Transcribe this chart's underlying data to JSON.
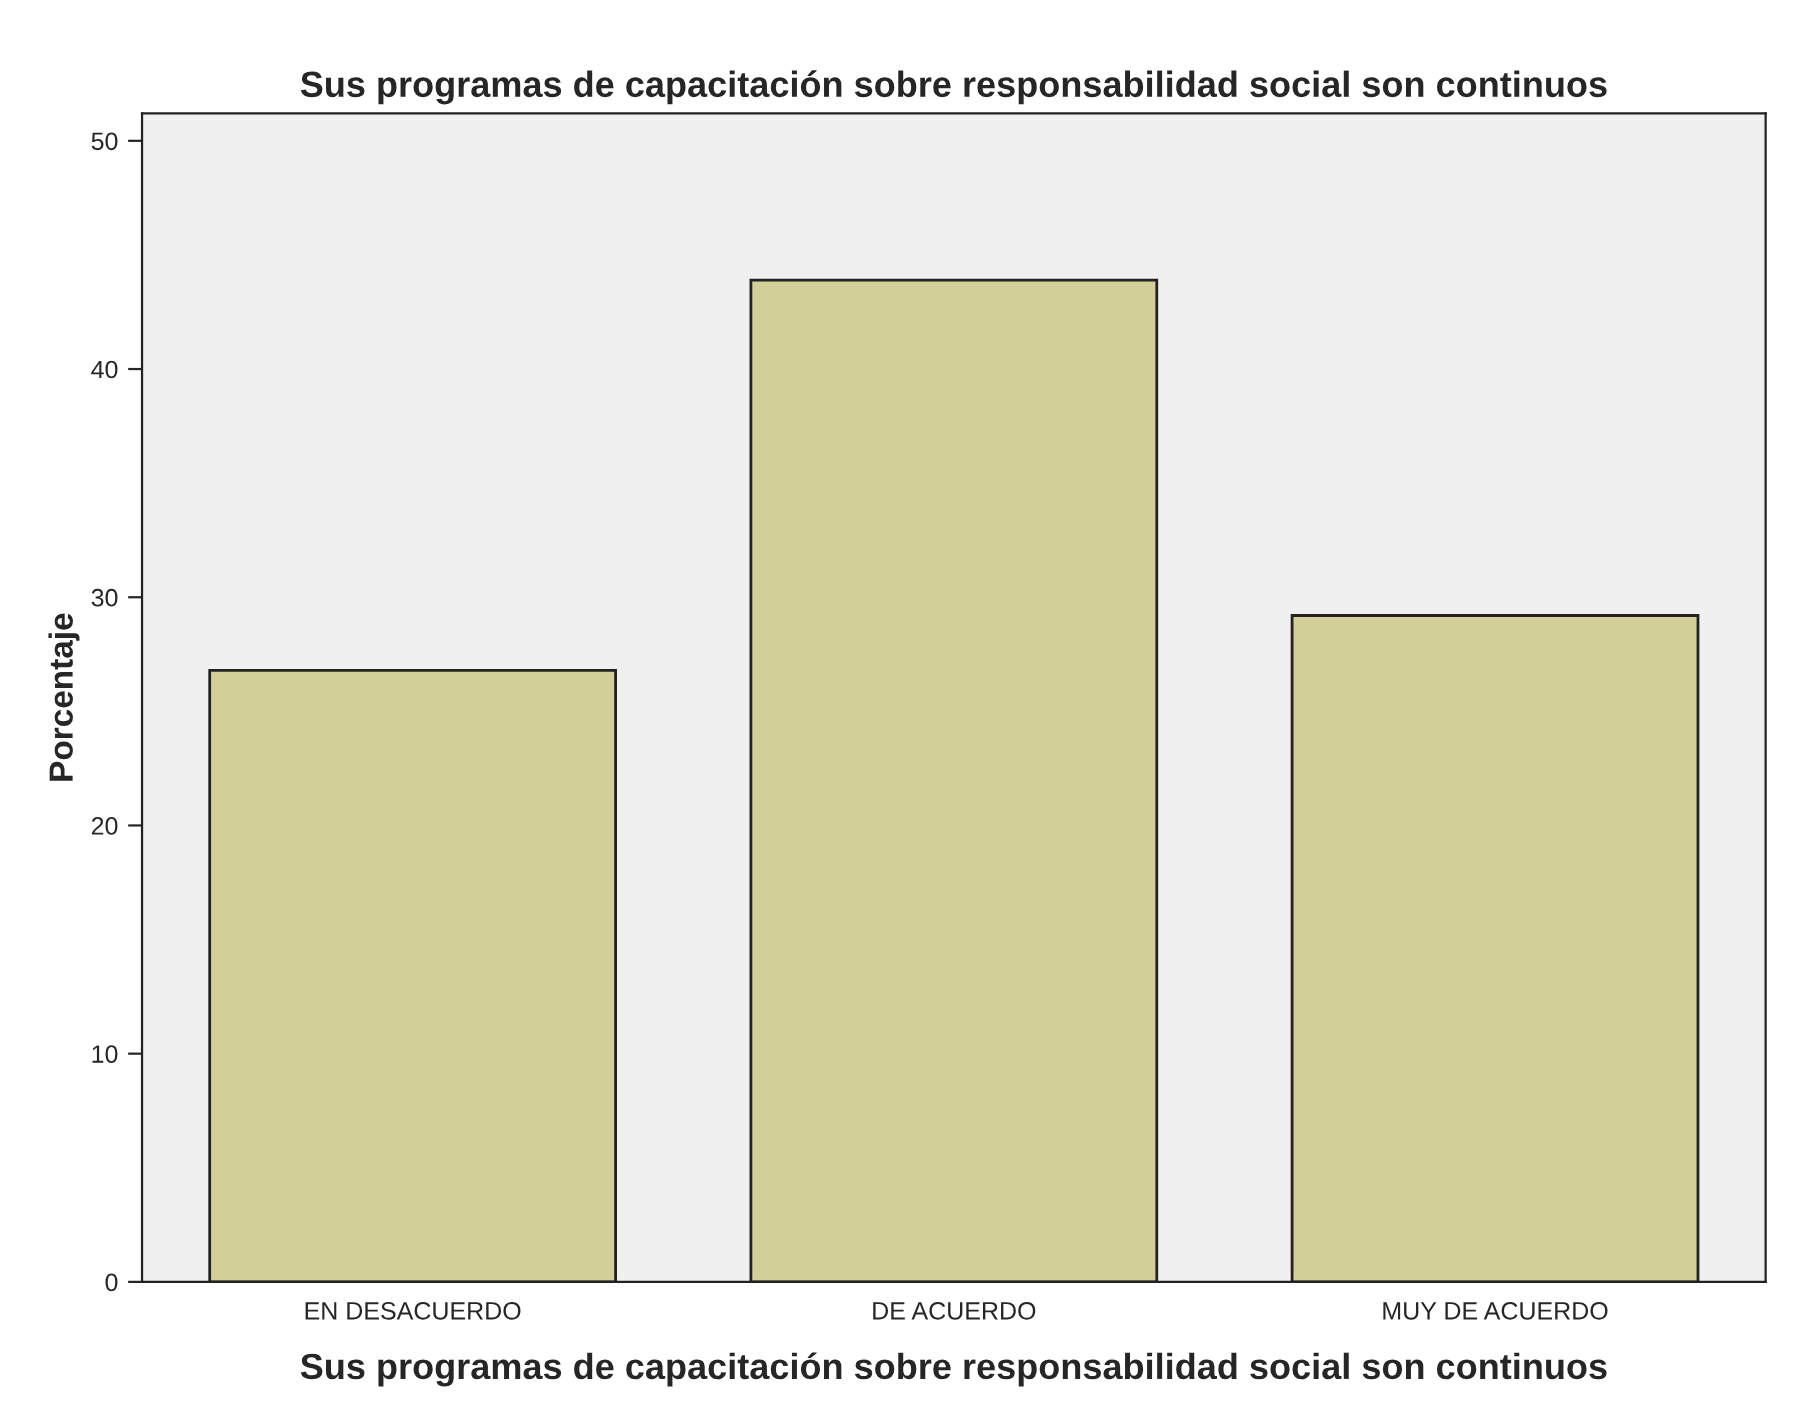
{
  "chart_data": {
    "type": "bar",
    "title": "Sus programas de capacitación sobre responsabilidad social son continuos",
    "xlabel": "Sus programas de capacitación sobre responsabilidad social son continuos",
    "ylabel": "Porcentaje",
    "categories": [
      "EN DESACUERDO",
      "DE ACUERDO",
      "MUY DE ACUERDO"
    ],
    "values": [
      26.8,
      43.9,
      29.2
    ],
    "color": "#d3cf98",
    "ylim": [
      0,
      51.2
    ],
    "yticks": [
      0,
      10,
      20,
      30,
      40,
      50
    ],
    "grid": false,
    "legend": false
  }
}
